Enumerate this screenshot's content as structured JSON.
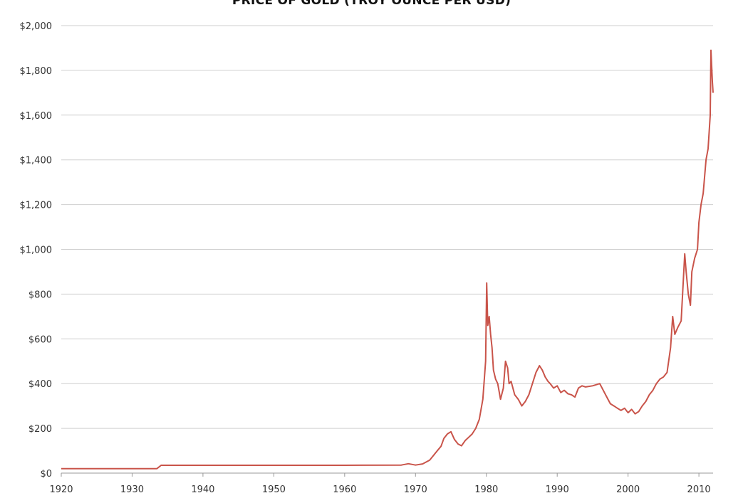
{
  "chart_data": {
    "type": "line",
    "title": "PRICE OF GOLD (TROY OUNCE PER USD)",
    "xlabel": "",
    "ylabel": "",
    "xlim": [
      1920,
      2012
    ],
    "ylim": [
      0,
      2000
    ],
    "x_ticks": [
      1920,
      1930,
      1940,
      1950,
      1960,
      1970,
      1980,
      1990,
      2000,
      2010
    ],
    "x_tick_labels": [
      "1920",
      "1930",
      "1940",
      "1950",
      "1960",
      "1970",
      "1980",
      "1990",
      "2000",
      "2010"
    ],
    "y_ticks": [
      0,
      200,
      400,
      600,
      800,
      1000,
      1200,
      1400,
      1600,
      1800,
      2000
    ],
    "y_tick_labels": [
      "$0",
      "$200",
      "$400",
      "$600",
      "$800",
      "$1,000",
      "$1,200",
      "$1,400",
      "$1,600",
      "$1,800",
      "$2,000"
    ],
    "grid": "horizontal",
    "legend": "none",
    "colors": {
      "line": "#c9544a",
      "grid": "#cfcfcf"
    },
    "series": [
      {
        "x": [
          1920,
          1925,
          1933.5,
          1934.1,
          1940,
          1950,
          1960,
          1968,
          1969,
          1970,
          1971,
          1972,
          1973,
          1973.6,
          1974,
          1974.5,
          1975,
          1975.5,
          1976,
          1976.5,
          1977,
          1977.5,
          1978,
          1978.5,
          1979,
          1979.5,
          1979.9,
          1980.05,
          1980.2,
          1980.4,
          1980.6,
          1980.8,
          1981,
          1981.3,
          1981.6,
          1982,
          1982.4,
          1982.7,
          1983,
          1983.2,
          1983.5,
          1984,
          1984.5,
          1985,
          1985.5,
          1986,
          1986.5,
          1987,
          1987.5,
          1987.9,
          1988.3,
          1988.7,
          1989,
          1989.5,
          1990,
          1990.5,
          1991,
          1991.5,
          1992,
          1992.5,
          1993,
          1993.5,
          1994,
          1995,
          1996,
          1996.5,
          1997,
          1997.5,
          1998,
          1998.5,
          1999,
          1999.5,
          2000,
          2000.5,
          2001,
          2001.5,
          2002,
          2002.5,
          2003,
          2003.5,
          2004,
          2004.5,
          2005,
          2005.5,
          2006,
          2006.3,
          2006.6,
          2007,
          2007.5,
          2008,
          2008.2,
          2008.5,
          2008.8,
          2009,
          2009.4,
          2009.8,
          2010,
          2010.3,
          2010.6,
          2011,
          2011.3,
          2011.6,
          2011.7,
          2011.9,
          2012
        ],
        "values": [
          20,
          20,
          20,
          35,
          35,
          35,
          35,
          36,
          42,
          36,
          41,
          58,
          97,
          120,
          155,
          175,
          185,
          150,
          130,
          122,
          145,
          160,
          175,
          200,
          240,
          330,
          500,
          850,
          660,
          700,
          620,
          560,
          460,
          420,
          400,
          330,
          380,
          500,
          470,
          400,
          410,
          350,
          330,
          300,
          320,
          350,
          400,
          450,
          480,
          460,
          430,
          410,
          400,
          380,
          390,
          360,
          370,
          355,
          350,
          340,
          380,
          390,
          385,
          390,
          400,
          370,
          340,
          310,
          300,
          290,
          280,
          290,
          270,
          285,
          265,
          275,
          300,
          320,
          350,
          370,
          400,
          420,
          430,
          450,
          560,
          700,
          620,
          650,
          680,
          980,
          900,
          800,
          750,
          900,
          960,
          1000,
          1120,
          1200,
          1250,
          1400,
          1450,
          1600,
          1890,
          1750,
          1700
        ]
      }
    ]
  }
}
